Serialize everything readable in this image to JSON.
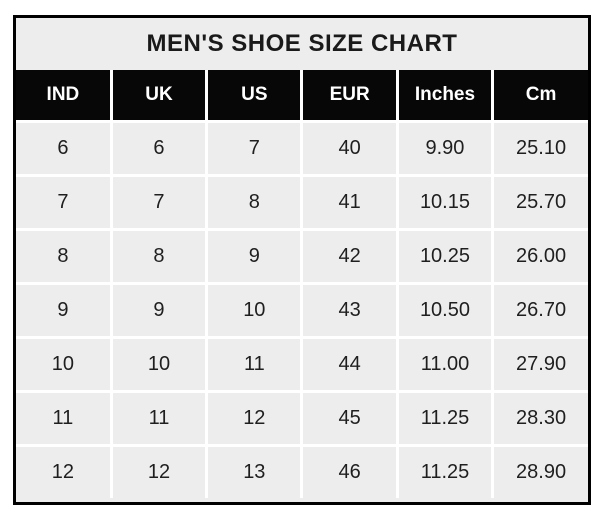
{
  "chart_data": {
    "type": "table",
    "title": "MEN'S SHOE SIZE CHART",
    "columns": [
      "IND",
      "UK",
      "US",
      "EUR",
      "Inches",
      "Cm"
    ],
    "rows": [
      [
        "6",
        "6",
        "7",
        "40",
        "9.90",
        "25.10"
      ],
      [
        "7",
        "7",
        "8",
        "41",
        "10.15",
        "25.70"
      ],
      [
        "8",
        "8",
        "9",
        "42",
        "10.25",
        "26.00"
      ],
      [
        "9",
        "9",
        "10",
        "43",
        "10.50",
        "26.70"
      ],
      [
        "10",
        "10",
        "11",
        "44",
        "11.00",
        "27.90"
      ],
      [
        "11",
        "11",
        "12",
        "45",
        "11.25",
        "28.30"
      ],
      [
        "12",
        "12",
        "13",
        "46",
        "11.25",
        "28.90"
      ]
    ]
  },
  "colors": {
    "header_bg": "#070707",
    "header_text": "#ffffff",
    "cell_bg": "#ededed",
    "title_bg": "#ededed",
    "outer_border": "#000000",
    "cell_text": "#1f1f1f"
  }
}
